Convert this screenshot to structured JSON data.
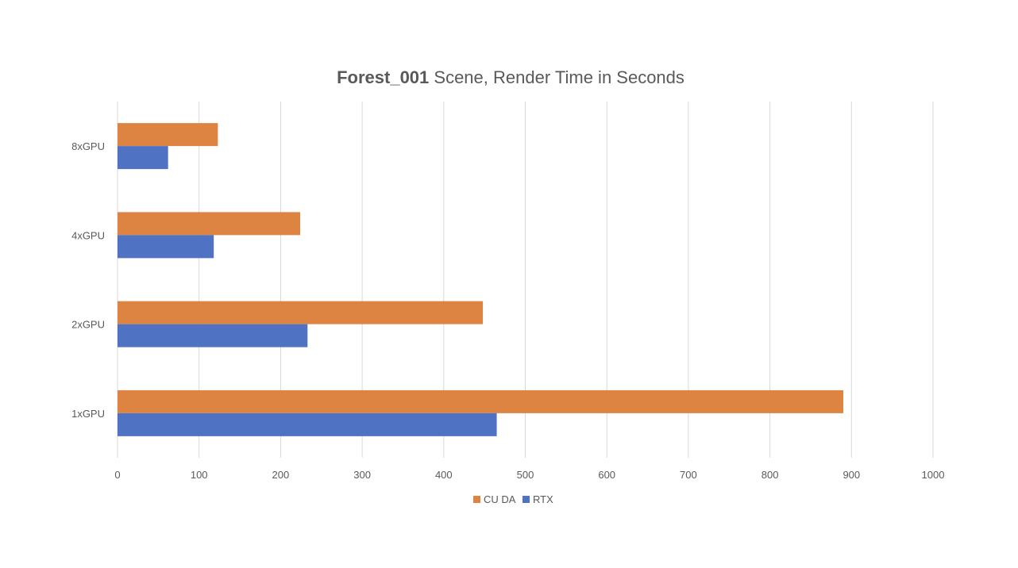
{
  "chart_data": {
    "type": "bar",
    "orientation": "horizontal",
    "title": "Forest_001 Scene, Render Time in Seconds",
    "title_bold": "Forest_001",
    "title_rest": " Scene, Render Time in Seconds",
    "categories": [
      "1xGPU",
      "2xGPU",
      "4xGPU",
      "8xGPU"
    ],
    "series": [
      {
        "name": "CUDA",
        "legend_label": "CU DA",
        "color": "#dd8443",
        "values": [
          890,
          448,
          224,
          123
        ]
      },
      {
        "name": "RTX",
        "legend_label": "RTX",
        "color": "#4f72c2",
        "values": [
          465,
          233,
          118,
          62
        ]
      }
    ],
    "xticks": [
      0,
      100,
      200,
      300,
      400,
      500,
      600,
      700,
      800,
      900,
      1000
    ],
    "xlim": [
      0,
      1000
    ],
    "xlabel": "",
    "ylabel": "",
    "grid": "vertical",
    "legend_position": "bottom"
  }
}
